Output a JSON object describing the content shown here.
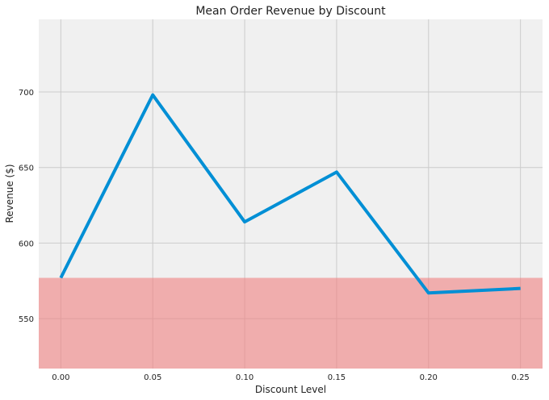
{
  "chart_data": {
    "type": "line",
    "title": "Mean Order Revenue by Discount",
    "xlabel": "Discount Level",
    "ylabel": "Revenue ($)",
    "x": [
      0.0,
      0.05,
      0.1,
      0.15,
      0.2,
      0.25
    ],
    "x_tick_labels": [
      "0.00",
      "0.05",
      "0.10",
      "0.15",
      "0.20",
      "0.25"
    ],
    "y_ticks": [
      550,
      600,
      650,
      700
    ],
    "y_tick_labels": [
      "550",
      "600",
      "650",
      "700"
    ],
    "xlim": [
      -0.012,
      0.262
    ],
    "ylim": [
      517,
      748
    ],
    "grid": true,
    "series": [
      {
        "values": [
          577,
          698,
          614,
          647,
          567,
          570
        ],
        "color": "#008fd5"
      }
    ],
    "shaded_band": {
      "y_from": 517,
      "y_to": 577,
      "color": "#f08080",
      "opacity": 0.6
    },
    "colors": {
      "plot_background": "#f0f0f0",
      "grid": "#cbcbcb"
    }
  }
}
